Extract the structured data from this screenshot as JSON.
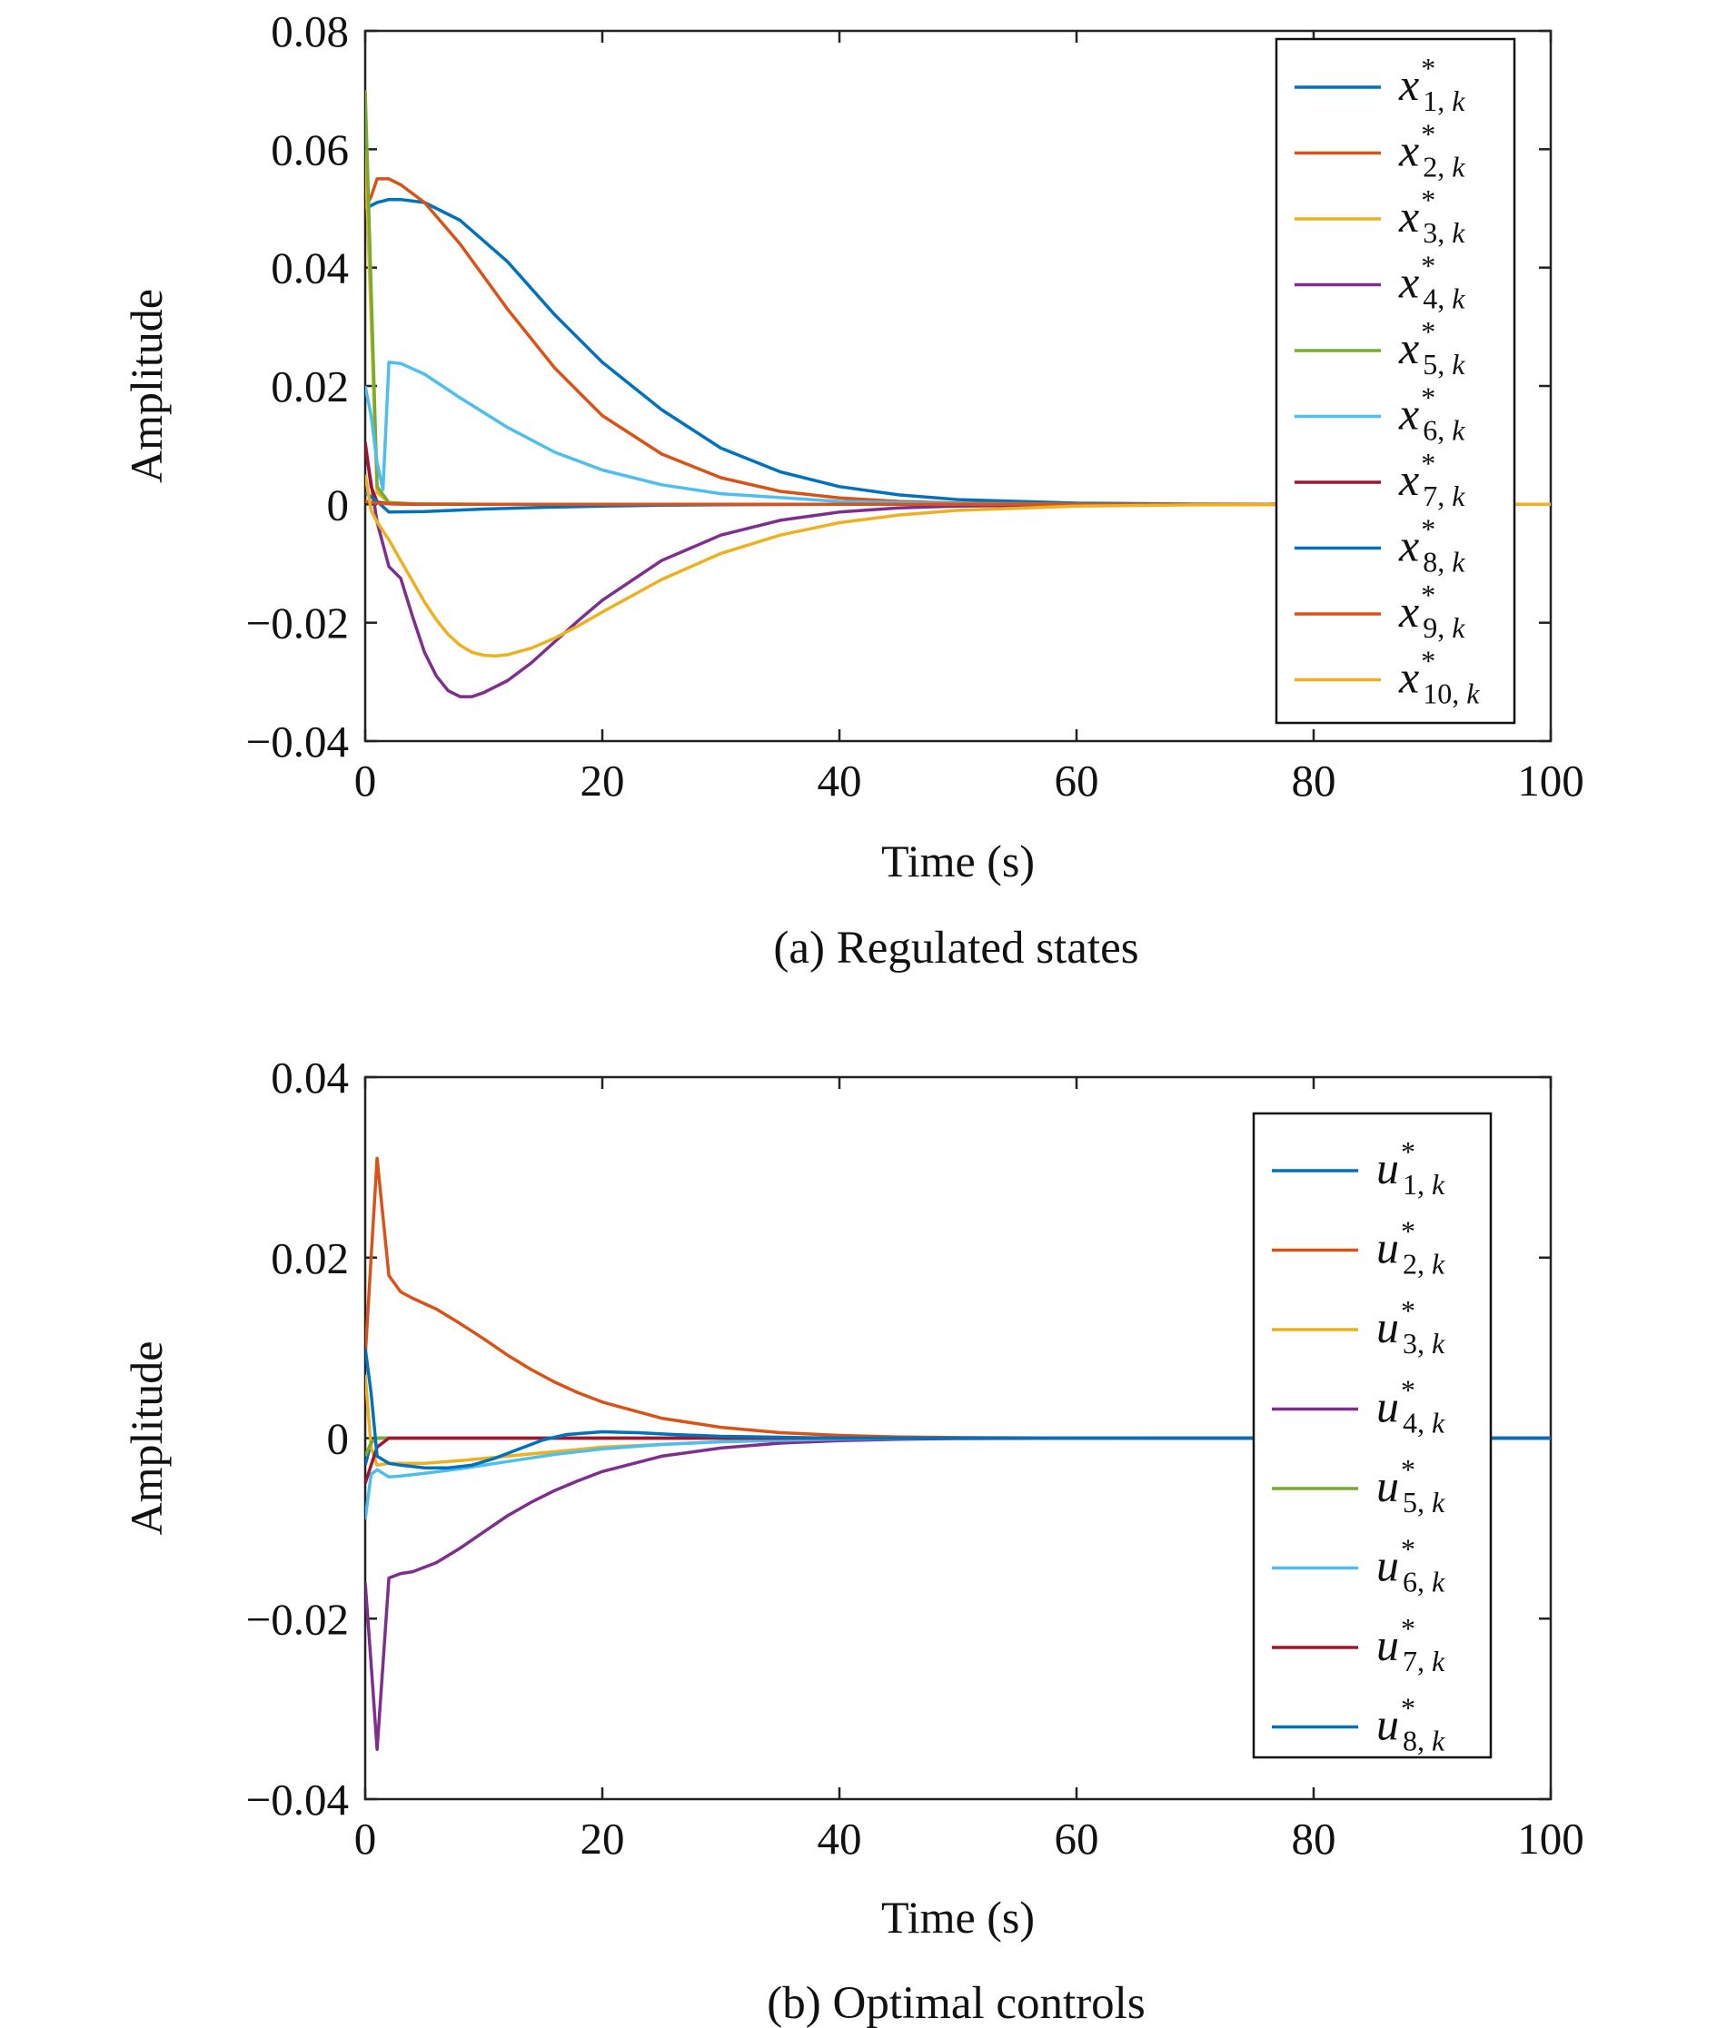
{
  "chart_data": [
    {
      "type": "line",
      "caption": "(a) Regulated states",
      "xlabel": "Time (s)",
      "ylabel": "Amplitude",
      "xlim": [
        0,
        100
      ],
      "ylim": [
        -0.04,
        0.08
      ],
      "xticks": [
        0,
        20,
        40,
        60,
        80,
        100
      ],
      "xtick_labels": [
        "0",
        "20",
        "40",
        "60",
        "80",
        "100"
      ],
      "yticks": [
        -0.04,
        -0.02,
        0,
        0.02,
        0.04,
        0.06,
        0.08
      ],
      "ytick_labels": [
        "−0.04",
        "−0.02",
        "0",
        "0.02",
        "0.04",
        "0.06",
        "0.08"
      ],
      "grid": false,
      "legend_position": "top-right",
      "series": [
        {
          "name": "x*1,k",
          "var": "x",
          "sup": "*",
          "sub": "1",
          "subk": "k",
          "color": "#0072BD",
          "x": [
            0,
            1,
            2,
            3,
            5,
            8,
            12,
            16,
            20,
            25,
            30,
            35,
            40,
            45,
            50,
            60,
            70,
            80,
            100
          ],
          "y": [
            0.05,
            0.051,
            0.0515,
            0.0515,
            0.051,
            0.048,
            0.041,
            0.032,
            0.024,
            0.016,
            0.0095,
            0.0055,
            0.003,
            0.0016,
            0.0008,
            0.0002,
            5e-05,
            0,
            0
          ]
        },
        {
          "name": "x*2,k",
          "var": "x",
          "sup": "*",
          "sub": "2",
          "subk": "k",
          "color": "#D95319",
          "x": [
            0,
            0.5,
            1,
            2,
            3,
            5,
            8,
            12,
            16,
            20,
            25,
            30,
            35,
            40,
            45,
            50,
            60,
            70,
            100
          ],
          "y": [
            0.05,
            0.052,
            0.055,
            0.055,
            0.054,
            0.051,
            0.044,
            0.033,
            0.023,
            0.015,
            0.0085,
            0.0045,
            0.0022,
            0.0011,
            0.0005,
            0.0002,
            4e-05,
            0,
            0
          ]
        },
        {
          "name": "x*3,k",
          "var": "x",
          "sup": "*",
          "sub": "3",
          "subk": "k",
          "color": "#EDB120",
          "x": [
            0,
            1,
            2,
            4,
            10,
            20,
            40,
            60,
            100
          ],
          "y": [
            0.06,
            0.002,
            0.0003,
            0.0001,
            0,
            0,
            0,
            0,
            0
          ]
        },
        {
          "name": "x*4,k",
          "var": "x",
          "sup": "*",
          "sub": "4",
          "subk": "k",
          "color": "#7E2F8E",
          "x": [
            0,
            1,
            2,
            3,
            4,
            5,
            6,
            7,
            8,
            9,
            10,
            12,
            14,
            16,
            18,
            20,
            25,
            30,
            35,
            40,
            45,
            50,
            60,
            70,
            100
          ],
          "y": [
            0.01,
            -0.003,
            -0.0105,
            -0.0125,
            -0.019,
            -0.025,
            -0.029,
            -0.0315,
            -0.0325,
            -0.0325,
            -0.0318,
            -0.0298,
            -0.0268,
            -0.0232,
            -0.0196,
            -0.0162,
            -0.0095,
            -0.0052,
            -0.0027,
            -0.0013,
            -0.0006,
            -0.0003,
            -5e-05,
            0,
            0
          ]
        },
        {
          "name": "x*5,k",
          "var": "x",
          "sup": "*",
          "sub": "5",
          "subk": "k",
          "color": "#77AC30",
          "x": [
            0,
            1,
            2,
            4,
            10,
            40,
            100
          ],
          "y": [
            0.07,
            0.003,
            0.0003,
            0.0001,
            0,
            0,
            0
          ]
        },
        {
          "name": "x*6,k",
          "var": "x",
          "sup": "*",
          "sub": "6",
          "subk": "k",
          "color": "#4DBEEE",
          "x": [
            0,
            0.5,
            1,
            1.5,
            2,
            3,
            5,
            8,
            12,
            16,
            20,
            25,
            30,
            40,
            50,
            60,
            100
          ],
          "y": [
            0.02,
            0.015,
            0.007,
            0.0025,
            0.024,
            0.0238,
            0.022,
            0.018,
            0.013,
            0.0088,
            0.0058,
            0.0033,
            0.0018,
            0.0005,
            0.00012,
            0,
            0
          ]
        },
        {
          "name": "x*7,k",
          "var": "x",
          "sup": "*",
          "sub": "7",
          "subk": "k",
          "color": "#A2142F",
          "x": [
            0,
            0.5,
            1,
            2,
            4,
            10,
            100
          ],
          "y": [
            0.0105,
            0.003,
            0.0004,
            0.0001,
            0,
            0,
            0
          ]
        },
        {
          "name": "x*8,k",
          "var": "x",
          "sup": "*",
          "sub": "8",
          "subk": "k",
          "color": "#0072BD",
          "x": [
            0,
            1,
            2,
            5,
            10,
            15,
            20,
            25,
            30,
            40,
            100
          ],
          "y": [
            0.002,
            0.0005,
            -0.0013,
            -0.0012,
            -0.0008,
            -0.0005,
            -0.0003,
            -0.00015,
            -5e-05,
            0,
            0
          ]
        },
        {
          "name": "x*9,k",
          "var": "x",
          "sup": "*",
          "sub": "9",
          "subk": "k",
          "color": "#D95319",
          "x": [
            0,
            1,
            2,
            5,
            10,
            100
          ],
          "y": [
            0.0005,
            0.0002,
            0.0001,
            0,
            0,
            0
          ]
        },
        {
          "name": "x*10,k",
          "var": "x",
          "sup": "*",
          "sub": "10",
          "subk": "k",
          "color": "#EDB120",
          "x": [
            0,
            0.5,
            1,
            2,
            3,
            4,
            5,
            6,
            7,
            8,
            9,
            10,
            11,
            12,
            14,
            16,
            18,
            20,
            25,
            30,
            35,
            40,
            45,
            50,
            60,
            70,
            100
          ],
          "y": [
            0.005,
            -0.001,
            -0.003,
            -0.006,
            -0.0095,
            -0.013,
            -0.0165,
            -0.0195,
            -0.022,
            -0.0238,
            -0.025,
            -0.0255,
            -0.0256,
            -0.0254,
            -0.0243,
            -0.0226,
            -0.0205,
            -0.0182,
            -0.0127,
            -0.0083,
            -0.0052,
            -0.0031,
            -0.0018,
            -0.001,
            -0.0003,
            -8e-05,
            0
          ]
        }
      ]
    },
    {
      "type": "line",
      "caption": "(b) Optimal controls",
      "xlabel": "Time (s)",
      "ylabel": "Amplitude",
      "xlim": [
        0,
        100
      ],
      "ylim": [
        -0.04,
        0.04
      ],
      "xticks": [
        0,
        20,
        40,
        60,
        80,
        100
      ],
      "xtick_labels": [
        "0",
        "20",
        "40",
        "60",
        "80",
        "100"
      ],
      "yticks": [
        -0.04,
        -0.02,
        0,
        0.02,
        0.04
      ],
      "ytick_labels": [
        "−0.04",
        "−0.02",
        "0",
        "0.02",
        "0.04"
      ],
      "grid": false,
      "legend_position": "top-right",
      "series": [
        {
          "name": "u*1,k",
          "var": "u",
          "sup": "*",
          "sub": "1",
          "subk": "k",
          "color": "#0072BD",
          "x": [
            0,
            0.5,
            1,
            2,
            5,
            10,
            100
          ],
          "y": [
            -0.003,
            -0.0005,
            0,
            0,
            0,
            0,
            0
          ]
        },
        {
          "name": "u*2,k",
          "var": "u",
          "sup": "*",
          "sub": "2",
          "subk": "k",
          "color": "#D95319",
          "x": [
            0,
            0.5,
            1,
            2,
            3,
            4,
            6,
            8,
            10,
            12,
            14,
            16,
            18,
            20,
            25,
            30,
            35,
            40,
            45,
            50,
            60,
            70,
            100
          ],
          "y": [
            0.009,
            0.02,
            0.031,
            0.018,
            0.0162,
            0.0155,
            0.0143,
            0.0127,
            0.011,
            0.0092,
            0.0076,
            0.0062,
            0.005,
            0.004,
            0.0022,
            0.0012,
            0.0006,
            0.0003,
            0.00013,
            6e-05,
            1e-05,
            0,
            0
          ]
        },
        {
          "name": "u*3,k",
          "var": "u",
          "sup": "*",
          "sub": "3",
          "subk": "k",
          "color": "#EDB120",
          "x": [
            0,
            0.5,
            1,
            2,
            5,
            8,
            12,
            16,
            20,
            30,
            40,
            50,
            100
          ],
          "y": [
            0.007,
            -0.001,
            -0.003,
            -0.0028,
            -0.0028,
            -0.0025,
            -0.002,
            -0.0015,
            -0.001,
            -0.0004,
            -0.0001,
            0,
            0
          ]
        },
        {
          "name": "u*4,k",
          "var": "u",
          "sup": "*",
          "sub": "4",
          "subk": "k",
          "color": "#7E2F8E",
          "x": [
            0,
            0.5,
            1,
            2,
            3,
            4,
            6,
            8,
            10,
            12,
            14,
            16,
            18,
            20,
            25,
            30,
            35,
            40,
            45,
            50,
            60,
            70,
            100
          ],
          "y": [
            -0.016,
            -0.025,
            -0.0345,
            -0.0155,
            -0.015,
            -0.0148,
            -0.0138,
            -0.0122,
            -0.0104,
            -0.0086,
            -0.0071,
            -0.0058,
            -0.0047,
            -0.0037,
            -0.002,
            -0.0011,
            -0.00055,
            -0.00027,
            -0.00012,
            -5e-05,
            -1e-05,
            0,
            0
          ]
        },
        {
          "name": "u*5,k",
          "var": "u",
          "sup": "*",
          "sub": "5",
          "subk": "k",
          "color": "#77AC30",
          "x": [
            0,
            0.5,
            1,
            2,
            5,
            100
          ],
          "y": [
            -0.002,
            -0.0005,
            0,
            0,
            0,
            0
          ]
        },
        {
          "name": "u*6,k",
          "var": "u",
          "sup": "*",
          "sub": "6",
          "subk": "k",
          "color": "#4DBEEE",
          "x": [
            0,
            0.5,
            1,
            2,
            3,
            5,
            8,
            12,
            16,
            20,
            25,
            30,
            40,
            50,
            100
          ],
          "y": [
            -0.009,
            -0.004,
            -0.0035,
            -0.0043,
            -0.0042,
            -0.0039,
            -0.0034,
            -0.0026,
            -0.0018,
            -0.0012,
            -0.0007,
            -0.0004,
            -0.0001,
            0,
            0
          ]
        },
        {
          "name": "u*7,k",
          "var": "u",
          "sup": "*",
          "sub": "7",
          "subk": "k",
          "color": "#A2142F",
          "x": [
            0,
            0.5,
            1,
            2,
            5,
            100
          ],
          "y": [
            -0.005,
            -0.003,
            -0.001,
            0,
            0,
            0
          ]
        },
        {
          "name": "u*8,k",
          "var": "u",
          "sup": "*",
          "sub": "8",
          "subk": "k",
          "color": "#0072BD",
          "x": [
            0,
            0.5,
            1,
            2,
            3,
            5,
            7,
            9,
            11,
            13,
            15,
            17,
            20,
            23,
            26,
            30,
            35,
            40,
            50,
            100
          ],
          "y": [
            0.01,
            0.005,
            -0.002,
            -0.0028,
            -0.003,
            -0.0033,
            -0.0033,
            -0.003,
            -0.0022,
            -0.0012,
            -0.0002,
            0.0004,
            0.0007,
            0.0006,
            0.0004,
            0.0002,
            0.0001,
            0,
            0,
            0
          ]
        }
      ]
    }
  ]
}
